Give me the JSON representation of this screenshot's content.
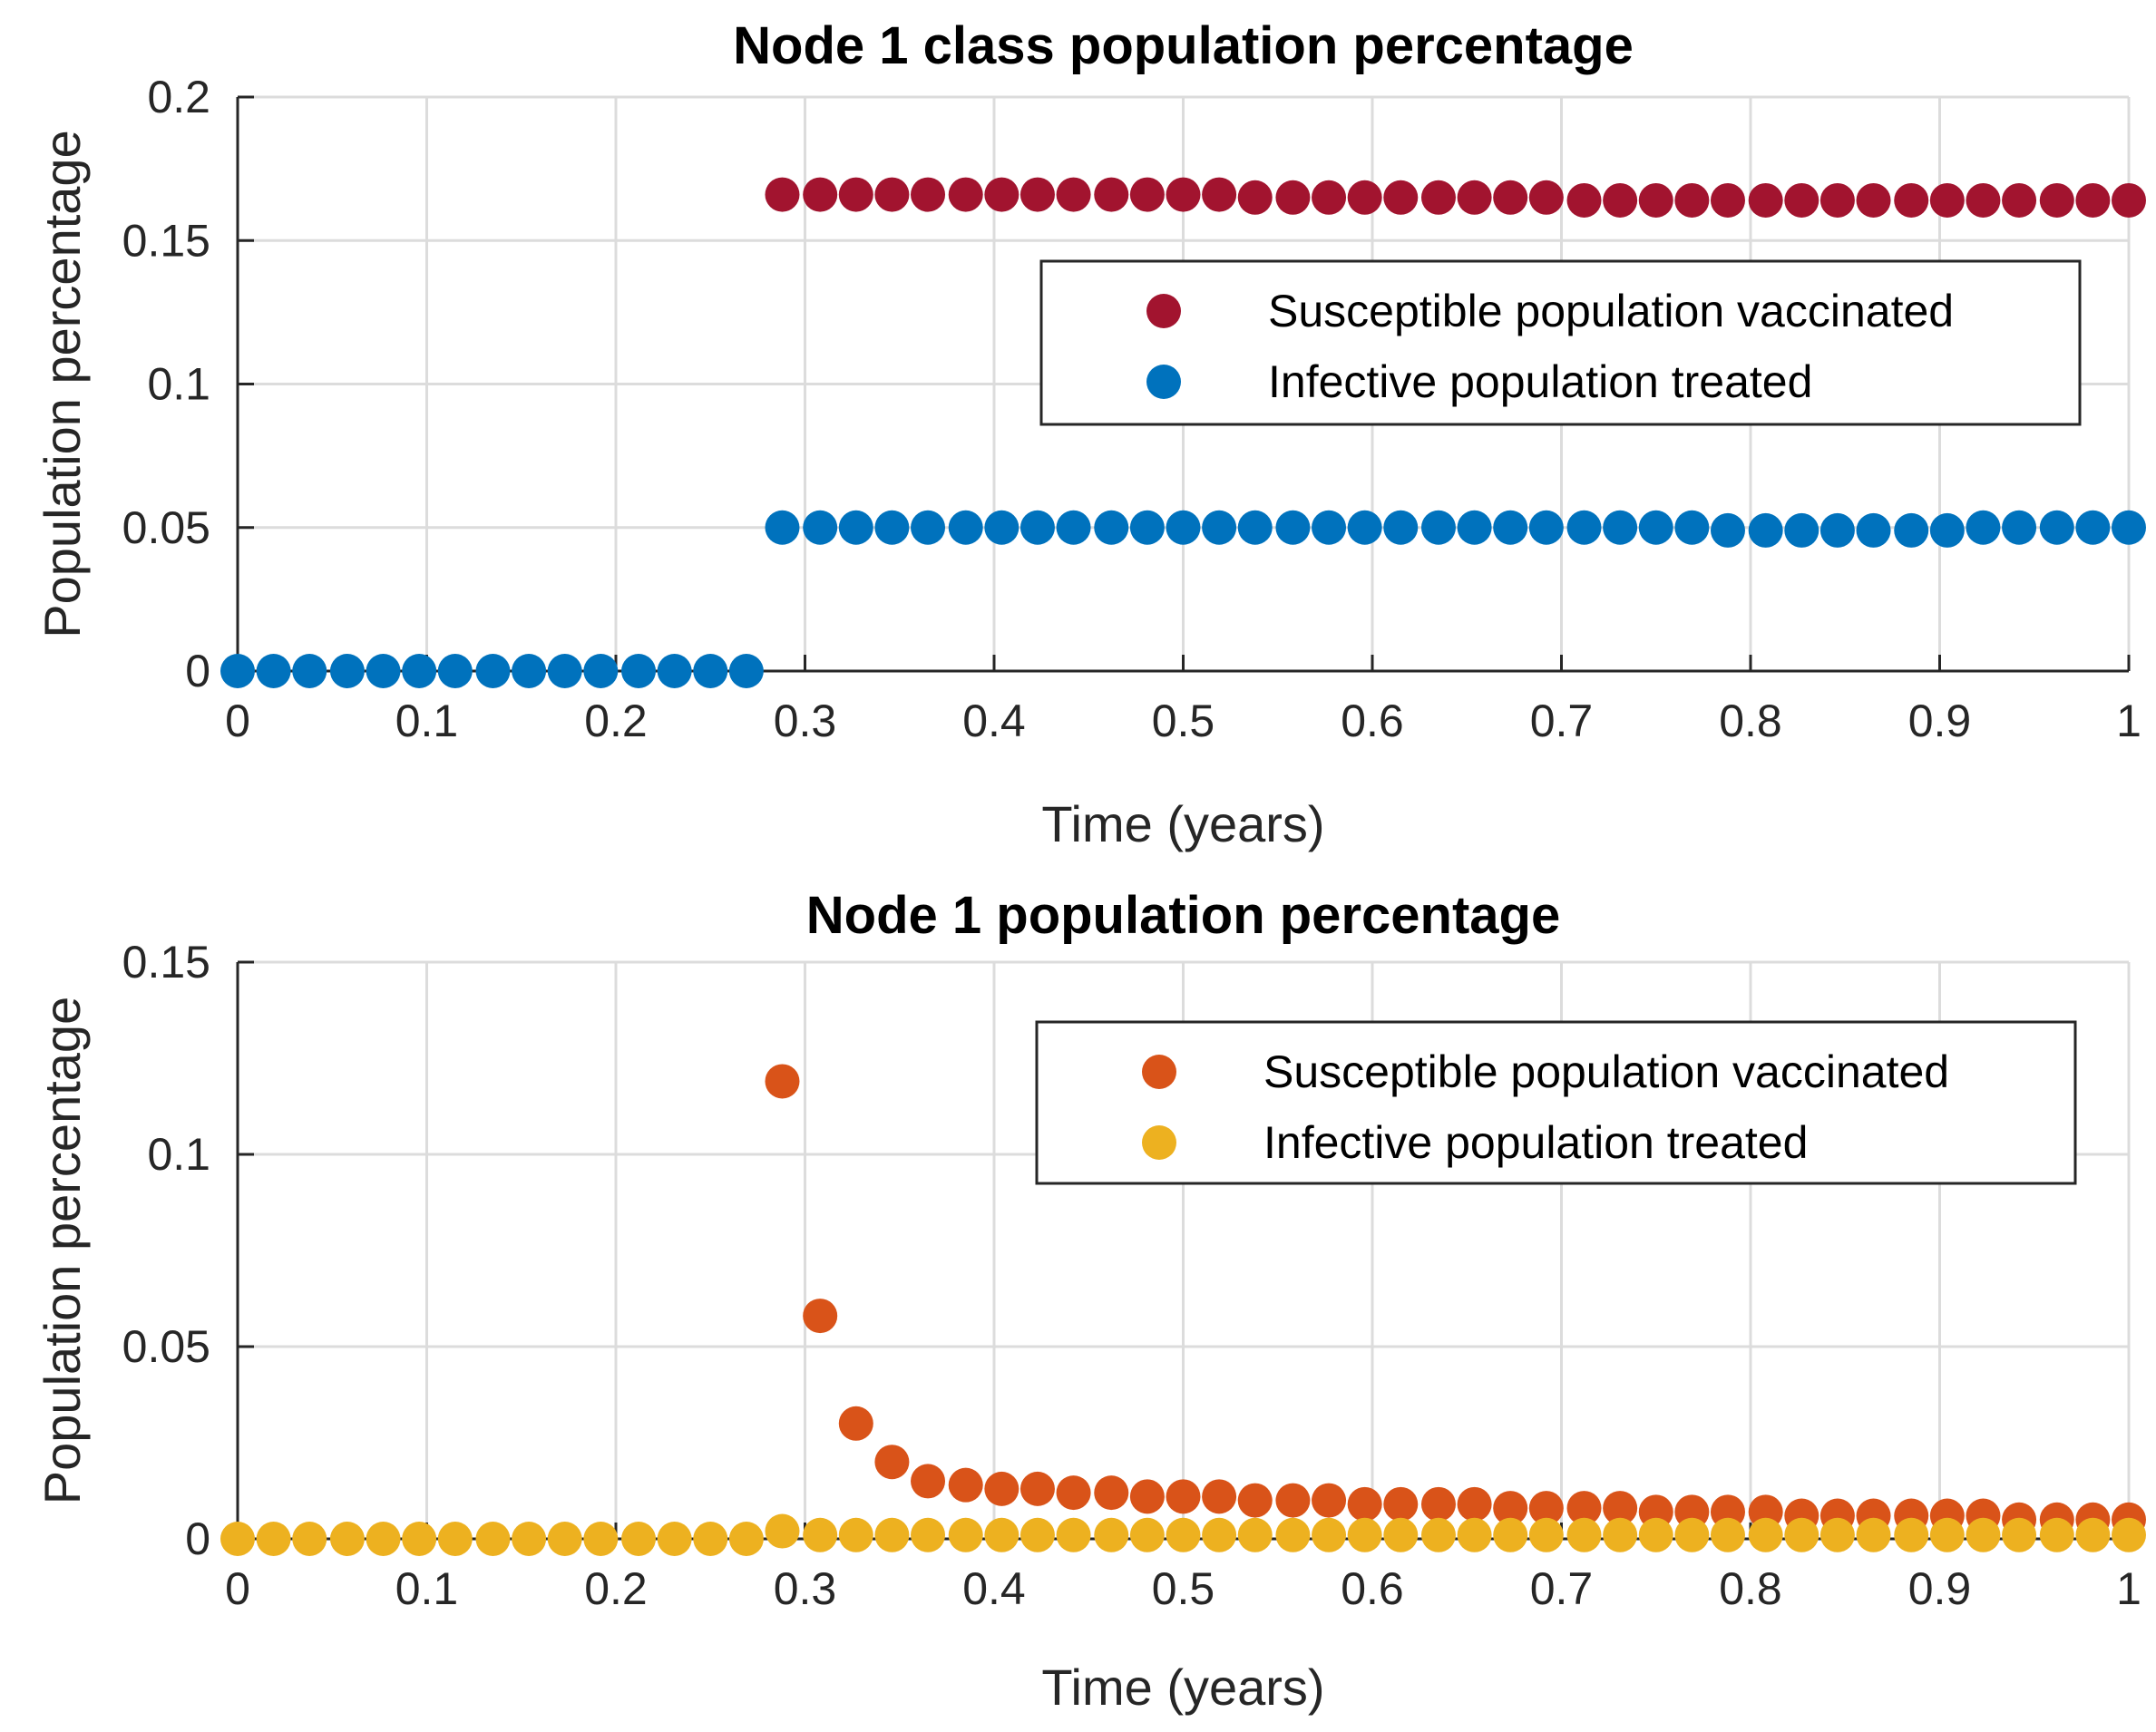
{
  "chart_data": [
    {
      "type": "scatter",
      "title": "Node 1 class population percentage",
      "xlabel": "Time (years)",
      "ylabel": "Population percentage",
      "xlim": [
        0,
        1
      ],
      "ylim": [
        0,
        0.2
      ],
      "xticks": [
        0,
        0.1,
        0.2,
        0.3,
        0.4,
        0.5,
        0.6,
        0.7,
        0.8,
        0.9,
        1
      ],
      "xtick_labels": [
        "0",
        "0.1",
        "0.2",
        "0.3",
        "0.4",
        "0.5",
        "0.6",
        "0.7",
        "0.8",
        "0.9",
        "1"
      ],
      "yticks": [
        0,
        0.05,
        0.1,
        0.15,
        0.2
      ],
      "ytick_labels": [
        "0",
        "0.05",
        "0.1",
        "0.15",
        "0.2"
      ],
      "grid": true,
      "legend_position": "top-right",
      "series": [
        {
          "name": "Susceptible population vaccinated",
          "color": "#a2142f",
          "x": [
            0.288,
            0.308,
            0.327,
            0.346,
            0.365,
            0.385,
            0.404,
            0.423,
            0.442,
            0.462,
            0.481,
            0.5,
            0.519,
            0.538,
            0.558,
            0.577,
            0.596,
            0.615,
            0.635,
            0.654,
            0.673,
            0.692,
            0.712,
            0.731,
            0.75,
            0.769,
            0.788,
            0.808,
            0.827,
            0.846,
            0.865,
            0.885,
            0.904,
            0.923,
            0.942,
            0.962,
            0.981,
            1.0
          ],
          "y": [
            0.166,
            0.166,
            0.166,
            0.166,
            0.166,
            0.166,
            0.166,
            0.166,
            0.166,
            0.166,
            0.166,
            0.166,
            0.166,
            0.165,
            0.165,
            0.165,
            0.165,
            0.165,
            0.165,
            0.165,
            0.165,
            0.165,
            0.164,
            0.164,
            0.164,
            0.164,
            0.164,
            0.164,
            0.164,
            0.164,
            0.164,
            0.164,
            0.164,
            0.164,
            0.164,
            0.164,
            0.164,
            0.164
          ]
        },
        {
          "name": "Infective population treated",
          "color": "#0072bd",
          "x": [
            0.0,
            0.019,
            0.038,
            0.058,
            0.077,
            0.096,
            0.115,
            0.135,
            0.154,
            0.173,
            0.192,
            0.212,
            0.231,
            0.25,
            0.269,
            0.288,
            0.308,
            0.327,
            0.346,
            0.365,
            0.385,
            0.404,
            0.423,
            0.442,
            0.462,
            0.481,
            0.5,
            0.519,
            0.538,
            0.558,
            0.577,
            0.596,
            0.615,
            0.635,
            0.654,
            0.673,
            0.692,
            0.712,
            0.731,
            0.75,
            0.769,
            0.788,
            0.808,
            0.827,
            0.846,
            0.865,
            0.885,
            0.904,
            0.923,
            0.942,
            0.962,
            0.981,
            1.0
          ],
          "y": [
            0,
            0,
            0,
            0,
            0,
            0,
            0,
            0,
            0,
            0,
            0,
            0,
            0,
            0,
            0,
            0.05,
            0.05,
            0.05,
            0.05,
            0.05,
            0.05,
            0.05,
            0.05,
            0.05,
            0.05,
            0.05,
            0.05,
            0.05,
            0.05,
            0.05,
            0.05,
            0.05,
            0.05,
            0.05,
            0.05,
            0.05,
            0.05,
            0.05,
            0.05,
            0.05,
            0.05,
            0.049,
            0.049,
            0.049,
            0.049,
            0.049,
            0.049,
            0.049,
            0.05,
            0.05,
            0.05,
            0.05,
            0.05
          ]
        }
      ],
      "legend": {
        "entries": [
          "Susceptible population vaccinated",
          "Infective population treated"
        ]
      }
    },
    {
      "type": "scatter",
      "title": "Node 1 population percentage",
      "xlabel": "Time (years)",
      "ylabel": "Population percentage",
      "xlim": [
        0,
        1
      ],
      "ylim": [
        0,
        0.15
      ],
      "xticks": [
        0,
        0.1,
        0.2,
        0.3,
        0.4,
        0.5,
        0.6,
        0.7,
        0.8,
        0.9,
        1
      ],
      "xtick_labels": [
        "0",
        "0.1",
        "0.2",
        "0.3",
        "0.4",
        "0.5",
        "0.6",
        "0.7",
        "0.8",
        "0.9",
        "1"
      ],
      "yticks": [
        0,
        0.05,
        0.1,
        0.15
      ],
      "ytick_labels": [
        "0",
        "0.05",
        "0.1",
        "0.15"
      ],
      "grid": true,
      "legend_position": "top-right",
      "series": [
        {
          "name": "Susceptible population vaccinated",
          "color": "#d95319",
          "x": [
            0.288,
            0.308,
            0.327,
            0.346,
            0.365,
            0.385,
            0.404,
            0.423,
            0.442,
            0.462,
            0.481,
            0.5,
            0.519,
            0.538,
            0.558,
            0.577,
            0.596,
            0.615,
            0.635,
            0.654,
            0.673,
            0.692,
            0.712,
            0.731,
            0.75,
            0.769,
            0.788,
            0.808,
            0.827,
            0.846,
            0.865,
            0.885,
            0.904,
            0.923,
            0.942,
            0.962,
            0.981,
            1.0
          ],
          "y": [
            0.119,
            0.058,
            0.03,
            0.02,
            0.015,
            0.014,
            0.013,
            0.013,
            0.012,
            0.012,
            0.011,
            0.011,
            0.011,
            0.01,
            0.01,
            0.01,
            0.009,
            0.009,
            0.009,
            0.009,
            0.008,
            0.008,
            0.008,
            0.008,
            0.007,
            0.007,
            0.007,
            0.007,
            0.006,
            0.006,
            0.006,
            0.006,
            0.006,
            0.006,
            0.005,
            0.005,
            0.005,
            0.005
          ]
        },
        {
          "name": "Infective population treated",
          "color": "#edb120",
          "x": [
            0.0,
            0.019,
            0.038,
            0.058,
            0.077,
            0.096,
            0.115,
            0.135,
            0.154,
            0.173,
            0.192,
            0.212,
            0.231,
            0.25,
            0.269,
            0.288,
            0.308,
            0.327,
            0.346,
            0.365,
            0.385,
            0.404,
            0.423,
            0.442,
            0.462,
            0.481,
            0.5,
            0.519,
            0.538,
            0.558,
            0.577,
            0.596,
            0.615,
            0.635,
            0.654,
            0.673,
            0.692,
            0.712,
            0.731,
            0.75,
            0.769,
            0.788,
            0.808,
            0.827,
            0.846,
            0.865,
            0.885,
            0.904,
            0.923,
            0.942,
            0.962,
            0.981,
            1.0
          ],
          "y": [
            0,
            0,
            0,
            0,
            0,
            0,
            0,
            0,
            0,
            0,
            0,
            0,
            0,
            0,
            0,
            0.002,
            0.001,
            0.001,
            0.001,
            0.001,
            0.001,
            0.001,
            0.001,
            0.001,
            0.001,
            0.001,
            0.001,
            0.001,
            0.001,
            0.001,
            0.001,
            0.001,
            0.001,
            0.001,
            0.001,
            0.001,
            0.001,
            0.001,
            0.001,
            0.001,
            0.001,
            0.001,
            0.001,
            0.001,
            0.001,
            0.001,
            0.001,
            0.001,
            0.001,
            0.001,
            0.001,
            0.001,
            0.001
          ]
        }
      ],
      "legend": {
        "entries": [
          "Susceptible population vaccinated",
          "Infective population treated"
        ]
      }
    }
  ]
}
